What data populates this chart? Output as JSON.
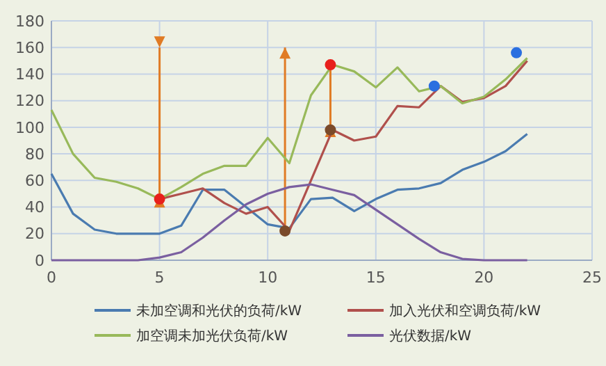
{
  "chart_data": {
    "type": "line",
    "x": [
      0,
      1,
      2,
      3,
      4,
      5,
      6,
      7,
      8,
      9,
      10,
      11,
      12,
      13,
      14,
      15,
      16,
      17,
      18,
      19,
      20,
      21,
      22
    ],
    "xlim": [
      0,
      25
    ],
    "xticks": [
      0,
      5,
      10,
      15,
      20,
      25
    ],
    "ylim": [
      0,
      180
    ],
    "yticks": [
      0,
      20,
      40,
      60,
      80,
      100,
      120,
      140,
      160,
      180
    ],
    "grid": true,
    "legend": "bottom",
    "series": [
      {
        "name": "未加空调和光伏的负荷/kW",
        "color": "#4a7bb0",
        "values": [
          65,
          35,
          23,
          20,
          20,
          20,
          26,
          53,
          53,
          40,
          27,
          24,
          46,
          47,
          37,
          46,
          53,
          54,
          58,
          68,
          74,
          82,
          95
        ]
      },
      {
        "name": "加入光伏和空调负荷/kW",
        "color": "#b0504c",
        "values": [
          null,
          null,
          null,
          null,
          null,
          46,
          50,
          54,
          43,
          35,
          40,
          22,
          60,
          98,
          90,
          93,
          116,
          115,
          131,
          119,
          122,
          131,
          150
        ]
      },
      {
        "name": "加空调未加光伏负荷/kW",
        "color": "#98b95a",
        "values": [
          113,
          80,
          62,
          59,
          54,
          46,
          55,
          65,
          71,
          71,
          92,
          73,
          124,
          147,
          142,
          130,
          145,
          127,
          131,
          118,
          123,
          136,
          152
        ]
      },
      {
        "name": "光伏数据/kW",
        "color": "#7a5fa0",
        "values": [
          0,
          0,
          0,
          0,
          0,
          2,
          6,
          17,
          30,
          42,
          50,
          55,
          57,
          53,
          49,
          38,
          27,
          16,
          6,
          1,
          0,
          0,
          0
        ]
      },
      {
        "type": "scatter",
        "x": [
          5,
          10.8,
          12.9,
          12.9,
          17.7,
          21.5
        ],
        "values": [
          46,
          22,
          147,
          98,
          131,
          156
        ],
        "colors": [
          "#e8201c",
          "#7a4a2a",
          "#e8201c",
          "#7a4a2a",
          "#2a6fe0",
          "#2a6fe0"
        ]
      }
    ]
  }
}
